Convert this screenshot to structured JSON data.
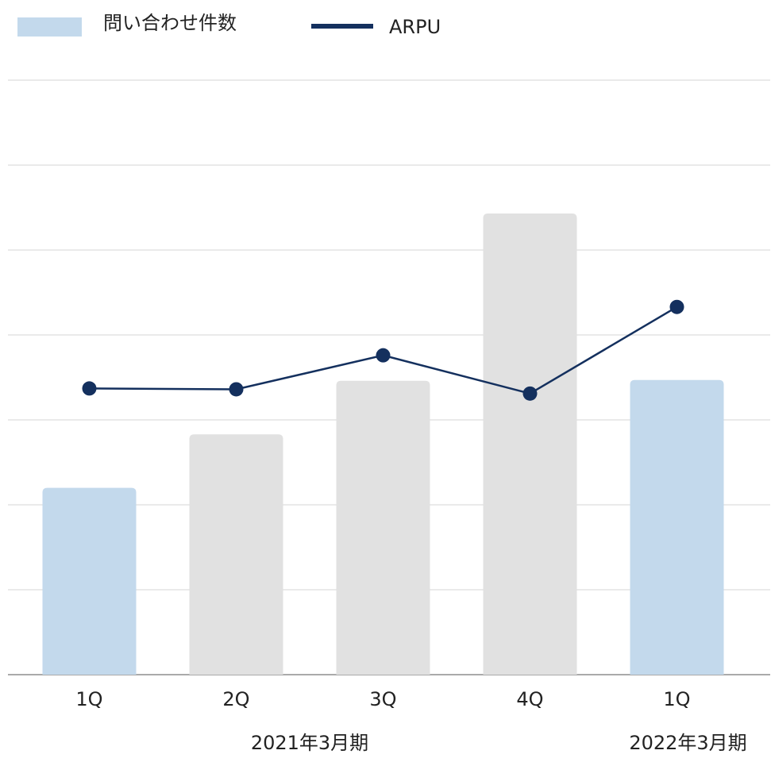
{
  "chart_data": {
    "type": "bar_line",
    "categories": [
      "1Q",
      "2Q",
      "3Q",
      "4Q",
      "1Q"
    ],
    "x_group_labels": [
      "2021年3月期",
      "2022年3月期"
    ],
    "series": [
      {
        "name": "問い合わせ件数",
        "type": "bar",
        "color": "#c3d9ec",
        "colors": [
          "#c3d9ec",
          "#e1e1e1",
          "#e1e1e1",
          "#e1e1e1",
          "#c3d9ec"
        ],
        "values": [
          2.2,
          2.83,
          3.46,
          5.43,
          3.47
        ]
      },
      {
        "name": "ARPU",
        "type": "line",
        "color": "#14305e",
        "values": [
          3.37,
          3.36,
          3.76,
          3.31,
          4.33
        ]
      }
    ],
    "ylim": [
      0,
      7
    ],
    "yticks": [
      0,
      1,
      2,
      3,
      4,
      5,
      6,
      7
    ],
    "grid": true,
    "legend": "top-left"
  }
}
